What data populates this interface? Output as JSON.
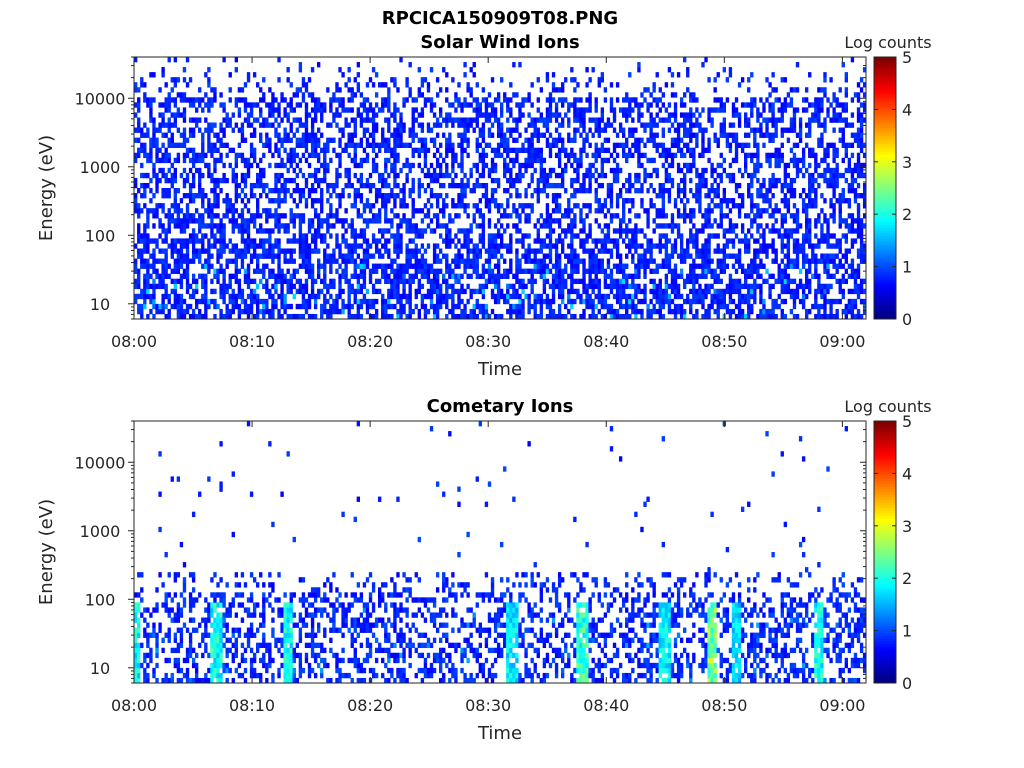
{
  "figure_title": "RPCICA150909T08.PNG",
  "chart_data": [
    {
      "type": "heatmap",
      "title": "Solar Wind Ions",
      "xlabel": "Time",
      "ylabel": "Energy (eV)",
      "x_ticks": [
        "08:00",
        "08:10",
        "08:20",
        "08:30",
        "08:40",
        "08:50",
        "09:00"
      ],
      "x_range": [
        "08:00",
        "09:02"
      ],
      "y_scale": "log",
      "y_ticks": [
        10,
        100,
        1000,
        10000
      ],
      "y_range": [
        6,
        40000
      ],
      "colorbar": {
        "label": "Log counts",
        "range": [
          0,
          5
        ],
        "ticks": [
          0,
          1,
          2,
          3,
          4,
          5
        ],
        "colormap": "jet"
      },
      "description_of_values": "dense low-level counts (log counts ~0-1) across full energy range 6 eV to ~30 keV, strongest below 100 eV",
      "intensity_profile": {
        "max_log_counts": 1.2,
        "typical_log_counts": 0.3
      }
    },
    {
      "type": "heatmap",
      "title": "Cometary Ions",
      "xlabel": "Time",
      "ylabel": "Energy (eV)",
      "x_ticks": [
        "08:00",
        "08:10",
        "08:20",
        "08:30",
        "08:40",
        "08:50",
        "09:00"
      ],
      "x_range": [
        "08:00",
        "09:02"
      ],
      "y_scale": "log",
      "y_ticks": [
        10,
        100,
        1000,
        10000
      ],
      "y_range": [
        6,
        40000
      ],
      "colorbar": {
        "label": "Log counts",
        "range": [
          0,
          5
        ],
        "ticks": [
          0,
          1,
          2,
          3,
          4,
          5
        ],
        "colormap": "jet"
      },
      "bursts": [
        {
          "time": "08:00",
          "log_counts": 1.7
        },
        {
          "time": "08:07",
          "log_counts": 1.8
        },
        {
          "time": "08:13",
          "log_counts": 1.8
        },
        {
          "time": "08:32",
          "log_counts": 1.6
        },
        {
          "time": "08:38",
          "log_counts": 2.0
        },
        {
          "time": "08:45",
          "log_counts": 1.7
        },
        {
          "time": "08:49",
          "log_counts": 2.4
        },
        {
          "time": "08:51",
          "log_counts": 1.5
        },
        {
          "time": "08:58",
          "log_counts": 1.8
        }
      ],
      "sparse_high_energy_points": true
    }
  ]
}
